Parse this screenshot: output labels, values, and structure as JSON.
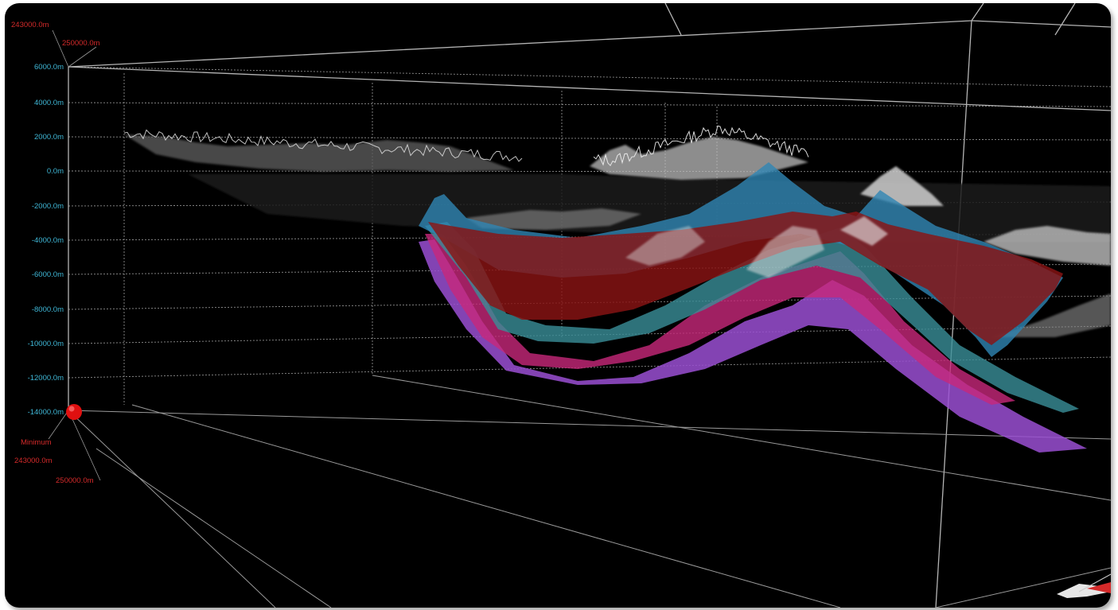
{
  "axes": {
    "depth_labels": [
      "6000.0m",
      "4000.0m",
      "2000.0m",
      "0.0m",
      "-2000.0m",
      "-4000.0m",
      "-6000.0m",
      "-8000.0m",
      "-10000.0m",
      "-12000.0m",
      "-14000.0m"
    ],
    "top_corner_labels": [
      "243000.0m",
      "250000.0m"
    ],
    "origin_labels": [
      "Minimum",
      "243000.0m",
      "250000.0m"
    ]
  },
  "colors": {
    "background": "#000000",
    "depth_label": "#3fb7d6",
    "corner_label": "#d42a2a",
    "origin_marker": "#e01010",
    "horizon_blue": "#2f86b4",
    "horizon_red": "#8a1414",
    "horizon_teal": "#3a8f98",
    "horizon_magenta": "#c8287a",
    "horizon_purple": "#9a4fd2",
    "terrain": "#d8d8d8"
  },
  "icons": [
    "origin-marker-icon",
    "orientation-compass-icon"
  ]
}
